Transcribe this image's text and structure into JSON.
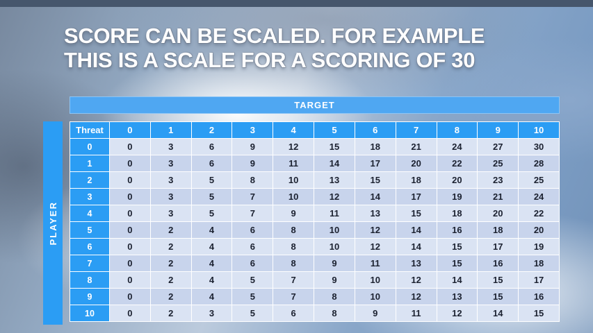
{
  "slide": {
    "title_line1": "SCORE CAN BE SCALED. FOR EXAMPLE",
    "title_line2": "THIS IS A SCALE FOR A SCORING OF 30"
  },
  "table": {
    "target_label": "TARGET",
    "player_label": "PLAYER",
    "corner_label": "Threat",
    "column_headers": [
      "0",
      "1",
      "2",
      "3",
      "4",
      "5",
      "6",
      "7",
      "8",
      "9",
      "10"
    ],
    "rows": [
      {
        "label": "0",
        "values": [
          0,
          3,
          6,
          9,
          12,
          15,
          18,
          21,
          24,
          27,
          30
        ]
      },
      {
        "label": "1",
        "values": [
          0,
          3,
          6,
          9,
          11,
          14,
          17,
          20,
          22,
          25,
          28
        ]
      },
      {
        "label": "2",
        "values": [
          0,
          3,
          5,
          8,
          10,
          13,
          15,
          18,
          20,
          23,
          25
        ]
      },
      {
        "label": "3",
        "values": [
          0,
          3,
          5,
          7,
          10,
          12,
          14,
          17,
          19,
          21,
          24
        ]
      },
      {
        "label": "4",
        "values": [
          0,
          3,
          5,
          7,
          9,
          11,
          13,
          15,
          18,
          20,
          22
        ]
      },
      {
        "label": "5",
        "values": [
          0,
          2,
          4,
          6,
          8,
          10,
          12,
          14,
          16,
          18,
          20
        ]
      },
      {
        "label": "6",
        "values": [
          0,
          2,
          4,
          6,
          8,
          10,
          12,
          14,
          15,
          17,
          19
        ]
      },
      {
        "label": "7",
        "values": [
          0,
          2,
          4,
          6,
          8,
          9,
          11,
          13,
          15,
          16,
          18
        ]
      },
      {
        "label": "8",
        "values": [
          0,
          2,
          4,
          5,
          7,
          9,
          10,
          12,
          14,
          15,
          17
        ]
      },
      {
        "label": "9",
        "values": [
          0,
          2,
          4,
          5,
          7,
          8,
          10,
          12,
          13,
          15,
          16
        ]
      },
      {
        "label": "10",
        "values": [
          0,
          2,
          3,
          5,
          6,
          8,
          9,
          11,
          12,
          14,
          15
        ]
      }
    ]
  },
  "colors": {
    "header_blue": "#2b9df4",
    "target_blue": "#4fa7f2",
    "row_light": "#dae3f3",
    "row_dark": "#c8d4ec",
    "top_bar": "#46566c",
    "title_text": "#ffffff",
    "cell_text": "#1b2130"
  }
}
